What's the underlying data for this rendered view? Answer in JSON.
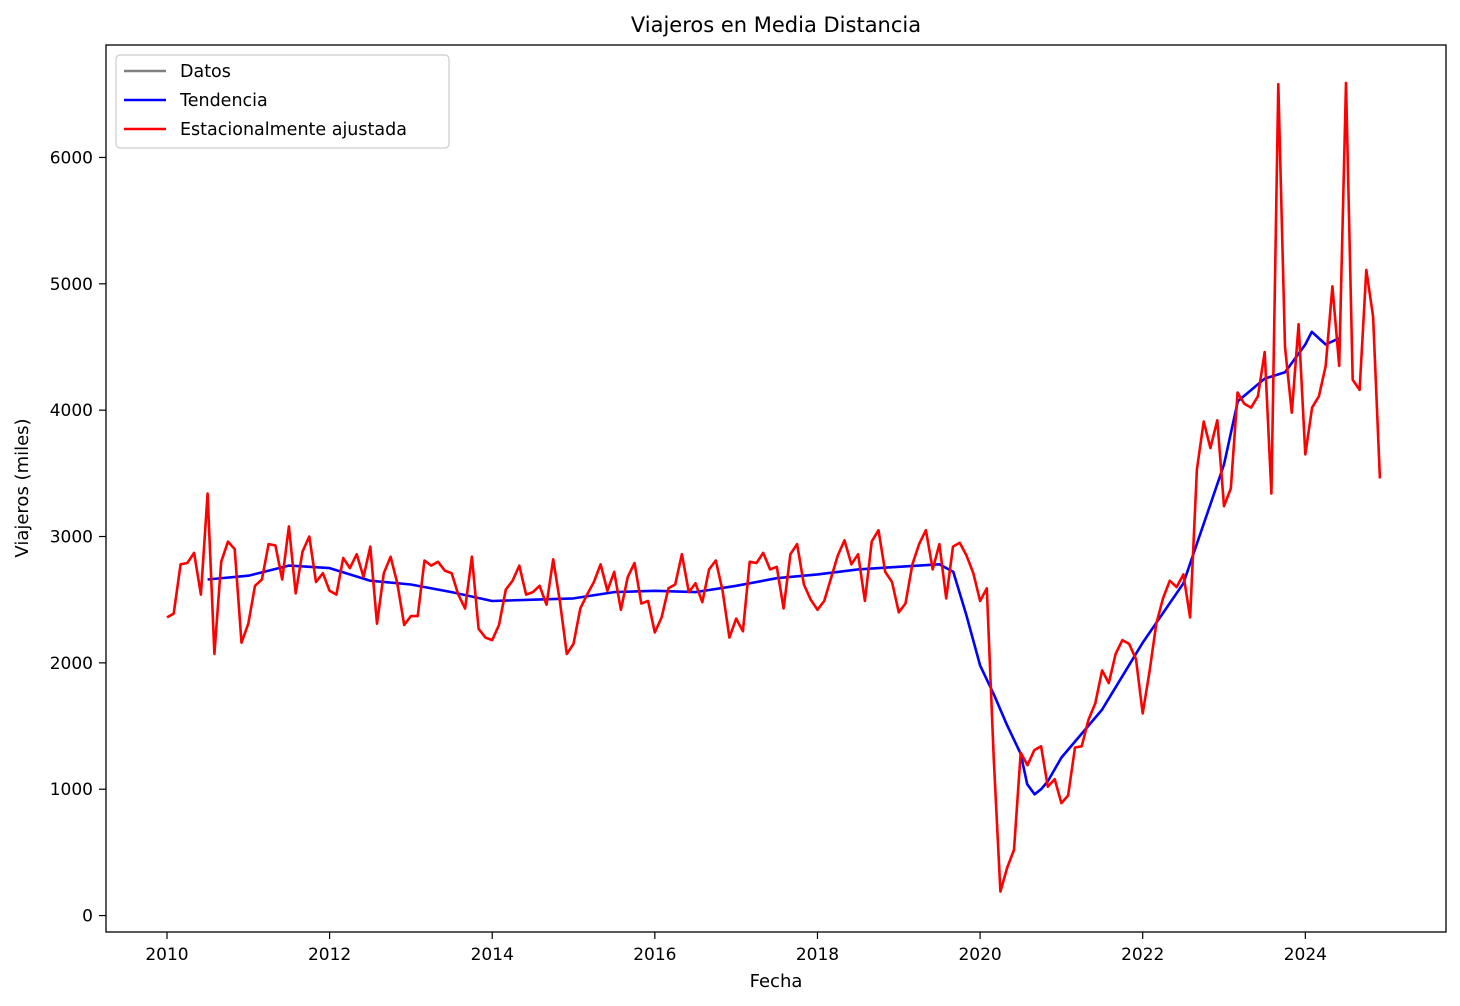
{
  "chart_data": {
    "type": "line",
    "title": "Viajeros en Media Distancia",
    "xlabel": "Fecha",
    "ylabel": "Viajeros (miles)",
    "xlim": [
      2009.25,
      2025.73
    ],
    "ylim": [
      -130,
      6890
    ],
    "x_ticks": [
      2010,
      2012,
      2014,
      2016,
      2018,
      2020,
      2022,
      2024
    ],
    "y_ticks": [
      0,
      1000,
      2000,
      3000,
      4000,
      5000,
      6000
    ],
    "x_tick_labels": [
      "2010",
      "2012",
      "2014",
      "2016",
      "2018",
      "2020",
      "2022",
      "2024"
    ],
    "y_tick_labels": [
      "0",
      "1000",
      "2000",
      "3000",
      "4000",
      "5000",
      "6000"
    ],
    "grid": false,
    "legend_position": "upper-left",
    "series": [
      {
        "name": "Datos",
        "color": "#808080",
        "x": [],
        "values": []
      },
      {
        "name": "Tendencia",
        "color": "#0000ff",
        "x": [
          2010.5,
          2011.0,
          2011.5,
          2012.0,
          2012.5,
          2013.0,
          2013.5,
          2014.0,
          2014.5,
          2015.0,
          2015.5,
          2016.0,
          2016.5,
          2017.0,
          2017.5,
          2018.0,
          2018.5,
          2019.0,
          2019.5,
          2019.67,
          2019.83,
          2020.0,
          2020.17,
          2020.33,
          2020.5,
          2020.58,
          2020.67,
          2020.75,
          2020.83,
          2021.0,
          2021.5,
          2022.0,
          2022.5,
          2022.67,
          2022.83,
          2023.0,
          2023.17,
          2023.5,
          2023.75,
          2024.0,
          2024.08,
          2024.25,
          2024.42
        ],
        "values": [
          2660,
          2690,
          2770,
          2750,
          2650,
          2620,
          2560,
          2490,
          2500,
          2510,
          2560,
          2570,
          2560,
          2610,
          2670,
          2700,
          2740,
          2760,
          2780,
          2720,
          2380,
          1980,
          1750,
          1510,
          1280,
          1040,
          960,
          1000,
          1060,
          1250,
          1630,
          2160,
          2630,
          2950,
          3250,
          3570,
          4070,
          4250,
          4300,
          4520,
          4620,
          4520,
          4570
        ]
      },
      {
        "name": "Estacionalmente ajustada",
        "color": "#ff0000",
        "x": [
          2010.0,
          2010.083,
          2010.167,
          2010.25,
          2010.333,
          2010.417,
          2010.5,
          2010.583,
          2010.667,
          2010.75,
          2010.833,
          2010.917,
          2011.0,
          2011.083,
          2011.167,
          2011.25,
          2011.333,
          2011.417,
          2011.5,
          2011.583,
          2011.667,
          2011.75,
          2011.833,
          2011.917,
          2012.0,
          2012.083,
          2012.167,
          2012.25,
          2012.333,
          2012.417,
          2012.5,
          2012.583,
          2012.667,
          2012.75,
          2012.833,
          2012.917,
          2013.0,
          2013.083,
          2013.167,
          2013.25,
          2013.333,
          2013.417,
          2013.5,
          2013.583,
          2013.667,
          2013.75,
          2013.833,
          2013.917,
          2014.0,
          2014.083,
          2014.167,
          2014.25,
          2014.333,
          2014.417,
          2014.5,
          2014.583,
          2014.667,
          2014.75,
          2014.833,
          2014.917,
          2015.0,
          2015.083,
          2015.167,
          2015.25,
          2015.333,
          2015.417,
          2015.5,
          2015.583,
          2015.667,
          2015.75,
          2015.833,
          2015.917,
          2016.0,
          2016.083,
          2016.167,
          2016.25,
          2016.333,
          2016.417,
          2016.5,
          2016.583,
          2016.667,
          2016.75,
          2016.833,
          2016.917,
          2017.0,
          2017.083,
          2017.167,
          2017.25,
          2017.333,
          2017.417,
          2017.5,
          2017.583,
          2017.667,
          2017.75,
          2017.833,
          2017.917,
          2018.0,
          2018.083,
          2018.167,
          2018.25,
          2018.333,
          2018.417,
          2018.5,
          2018.583,
          2018.667,
          2018.75,
          2018.833,
          2018.917,
          2019.0,
          2019.083,
          2019.167,
          2019.25,
          2019.333,
          2019.417,
          2019.5,
          2019.583,
          2019.667,
          2019.75,
          2019.833,
          2019.917,
          2020.0,
          2020.083,
          2020.167,
          2020.25,
          2020.333,
          2020.417,
          2020.5,
          2020.583,
          2020.667,
          2020.75,
          2020.833,
          2020.917,
          2021.0,
          2021.083,
          2021.167,
          2021.25,
          2021.333,
          2021.417,
          2021.5,
          2021.583,
          2021.667,
          2021.75,
          2021.833,
          2021.917,
          2022.0,
          2022.083,
          2022.167,
          2022.25,
          2022.333,
          2022.417,
          2022.5,
          2022.583,
          2022.667,
          2022.75,
          2022.833,
          2022.917,
          2023.0,
          2023.083,
          2023.167,
          2023.25,
          2023.333,
          2023.417,
          2023.5,
          2023.583,
          2023.667,
          2023.75,
          2023.833,
          2023.917,
          2024.0,
          2024.083,
          2024.167,
          2024.25,
          2024.333,
          2024.417,
          2024.5,
          2024.583,
          2024.667,
          2024.75,
          2024.833,
          2024.917
        ],
        "values": [
          2360,
          2390,
          2780,
          2790,
          2870,
          2540,
          3340,
          2070,
          2800,
          2960,
          2900,
          2160,
          2310,
          2610,
          2660,
          2940,
          2930,
          2660,
          3080,
          2550,
          2880,
          3000,
          2640,
          2710,
          2570,
          2540,
          2830,
          2750,
          2860,
          2680,
          2920,
          2310,
          2710,
          2840,
          2630,
          2300,
          2370,
          2370,
          2810,
          2770,
          2800,
          2730,
          2710,
          2540,
          2430,
          2840,
          2270,
          2200,
          2180,
          2300,
          2580,
          2650,
          2770,
          2540,
          2560,
          2610,
          2460,
          2820,
          2480,
          2070,
          2150,
          2430,
          2540,
          2640,
          2780,
          2570,
          2720,
          2420,
          2680,
          2790,
          2470,
          2490,
          2240,
          2360,
          2590,
          2620,
          2860,
          2560,
          2630,
          2480,
          2740,
          2810,
          2570,
          2200,
          2350,
          2250,
          2800,
          2790,
          2870,
          2740,
          2760,
          2430,
          2860,
          2940,
          2620,
          2500,
          2420,
          2490,
          2670,
          2850,
          2970,
          2780,
          2860,
          2490,
          2960,
          3050,
          2720,
          2640,
          2400,
          2470,
          2780,
          2940,
          3050,
          2740,
          2940,
          2510,
          2920,
          2950,
          2850,
          2710,
          2490,
          2590,
          1250,
          190,
          380,
          520,
          1290,
          1190,
          1310,
          1340,
          1020,
          1080,
          890,
          950,
          1330,
          1340,
          1550,
          1680,
          1940,
          1840,
          2070,
          2180,
          2150,
          2030,
          1600,
          1930,
          2310,
          2510,
          2650,
          2600,
          2700,
          2360,
          3530,
          3910,
          3700,
          3920,
          3240,
          3380,
          4140,
          4050,
          4020,
          4110,
          4460,
          3340,
          6580,
          4500,
          3980,
          4680,
          3650,
          4020,
          4110,
          4350,
          4980,
          4350,
          6590,
          4240,
          4160,
          5110,
          4740,
          3460
        ]
      }
    ]
  }
}
